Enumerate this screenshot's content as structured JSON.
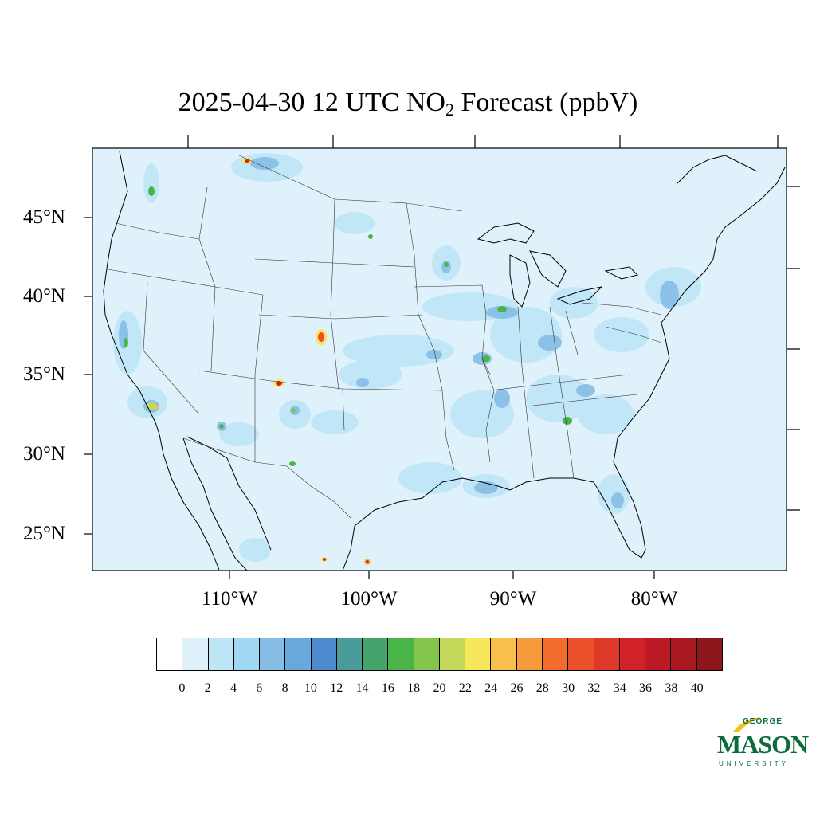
{
  "title": {
    "prefix": "2025-04-30 12 UTC NO",
    "subscript": "2",
    "suffix": " Forecast (ppbV)"
  },
  "map": {
    "background_color": "#dff2fb",
    "lat_labels": [
      "45°N",
      "40°N",
      "35°N",
      "30°N",
      "25°N"
    ],
    "lon_labels": [
      "110°W",
      "100°W",
      "90°W",
      "80°W"
    ]
  },
  "colorbar": {
    "colors": [
      "#ffffff",
      "#dff2fb",
      "#bfe6f7",
      "#a0d8f3",
      "#86bde6",
      "#68a8dd",
      "#4b8bcd",
      "#4a9c9a",
      "#45a46b",
      "#49b548",
      "#86c54c",
      "#c4d85a",
      "#f7e75a",
      "#f8bf4c",
      "#f69a3c",
      "#f26c2c",
      "#ea512a",
      "#df3a29",
      "#d22128",
      "#bb1a24",
      "#a8191f",
      "#8d161b"
    ],
    "tick_labels": [
      "0",
      "2",
      "4",
      "6",
      "8",
      "10",
      "12",
      "14",
      "16",
      "18",
      "20",
      "22",
      "24",
      "26",
      "28",
      "30",
      "32",
      "34",
      "36",
      "38",
      "40"
    ]
  },
  "logo": {
    "top": "GEORGE",
    "main": "MASON",
    "bottom": "UNIVERSITY",
    "color": "#0b6b3a",
    "accent": "#f2c314"
  }
}
